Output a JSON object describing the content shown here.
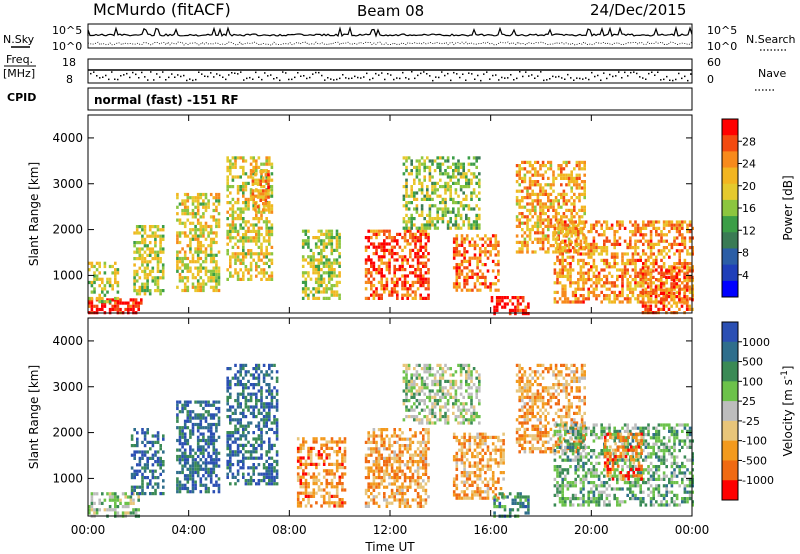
{
  "header": {
    "station": "McMurdo (fitACF)",
    "beam": "Beam 08",
    "date": "24/Dec/2015"
  },
  "status": {
    "nsky_label": "N.Sky",
    "nsearch_label": "N.Search",
    "noise_ticks_left": [
      "10^5",
      "10^0"
    ],
    "noise_ticks_right": [
      "10^5",
      "10^0"
    ],
    "freq_label": "Freq.",
    "freq_unit": "[MHz]",
    "freq_ticks": [
      "18",
      "8"
    ],
    "nave_ticks": [
      "60",
      "0"
    ],
    "nave_label": "Nave",
    "cpid_label": "CPID",
    "cpid_value": "normal (fast) -151 RF"
  },
  "chart_data": [
    {
      "type": "heatmap",
      "name": "power",
      "ylabel": "Slant Range [km]",
      "ylim": [
        180,
        4500
      ],
      "yticks": [
        1000,
        2000,
        3000,
        4000
      ],
      "xlim": [
        0,
        24
      ],
      "xtick_labels": [
        "00:00",
        "04:00",
        "08:00",
        "12:00",
        "16:00",
        "20:00",
        "00:00"
      ],
      "colorbar": {
        "label": "Power [dB]",
        "ticks": [
          "28",
          "24",
          "20",
          "16",
          "12",
          "8",
          "4"
        ],
        "colors": [
          "#ff0000",
          "#f34a10",
          "#f78a1c",
          "#f2b520",
          "#e5c92d",
          "#8cc63f",
          "#3b9e47",
          "#3a7b54",
          "#2b5ea6",
          "#1f3fb9",
          "#0000ff"
        ]
      },
      "regions": [
        {
          "t0": 0.0,
          "t1": 2.1,
          "r0": 180,
          "r1": 500,
          "level": 0.95
        },
        {
          "t0": 0.0,
          "t1": 1.2,
          "r0": 400,
          "r1": 1300,
          "level": 0.55
        },
        {
          "t0": 1.8,
          "t1": 3.0,
          "r0": 600,
          "r1": 2100,
          "level": 0.55
        },
        {
          "t0": 3.5,
          "t1": 5.2,
          "r0": 700,
          "r1": 2800,
          "level": 0.6
        },
        {
          "t0": 5.5,
          "t1": 7.3,
          "r0": 900,
          "r1": 3600,
          "level": 0.6
        },
        {
          "t0": 6.5,
          "t1": 7.2,
          "r0": 2400,
          "r1": 3300,
          "level": 0.75
        },
        {
          "t0": 8.5,
          "t1": 10.0,
          "r0": 500,
          "r1": 2000,
          "level": 0.55
        },
        {
          "t0": 11.0,
          "t1": 13.5,
          "r0": 500,
          "r1": 2000,
          "level": 0.85
        },
        {
          "t0": 12.5,
          "t1": 15.5,
          "r0": 2000,
          "r1": 3600,
          "level": 0.5
        },
        {
          "t0": 14.5,
          "t1": 16.3,
          "r0": 700,
          "r1": 1900,
          "level": 0.8
        },
        {
          "t0": 16.0,
          "t1": 17.5,
          "r0": 200,
          "r1": 550,
          "level": 0.95
        },
        {
          "t0": 17.0,
          "t1": 19.7,
          "r0": 1500,
          "r1": 3500,
          "level": 0.7
        },
        {
          "t0": 18.5,
          "t1": 24.0,
          "r0": 400,
          "r1": 2200,
          "level": 0.75
        },
        {
          "t0": 22.0,
          "t1": 24.0,
          "r0": 200,
          "r1": 1200,
          "level": 0.85
        }
      ]
    },
    {
      "type": "heatmap",
      "name": "velocity",
      "ylabel": "Slant Range [km]",
      "xlabel": "Time UT",
      "ylim": [
        180,
        4500
      ],
      "yticks": [
        1000,
        2000,
        3000,
        4000
      ],
      "xlim": [
        0,
        24
      ],
      "xtick_labels": [
        "00:00",
        "04:00",
        "08:00",
        "12:00",
        "16:00",
        "20:00",
        "00:00"
      ],
      "colorbar": {
        "label": "Velocity [m s^-1]",
        "ticks": [
          "1000",
          "500",
          "100",
          "25",
          "-25",
          "-100",
          "-500",
          "-1000"
        ],
        "colors": [
          "#2b4fb3",
          "#2f6e8c",
          "#3a8a55",
          "#6cc24a",
          "#bdbdbd",
          "#e8c57a",
          "#f39a1d",
          "#f06a12",
          "#ff0000"
        ]
      },
      "regions": [
        {
          "t0": 0.0,
          "t1": 2.0,
          "r0": 180,
          "r1": 700,
          "level": 0.45
        },
        {
          "t0": 1.7,
          "t1": 3.0,
          "r0": 700,
          "r1": 2100,
          "level": 0.15
        },
        {
          "t0": 3.5,
          "t1": 5.2,
          "r0": 700,
          "r1": 2700,
          "level": 0.15
        },
        {
          "t0": 5.5,
          "t1": 7.5,
          "r0": 900,
          "r1": 3500,
          "level": 0.15
        },
        {
          "t0": 8.3,
          "t1": 10.2,
          "r0": 400,
          "r1": 1900,
          "level": 0.75
        },
        {
          "t0": 11.0,
          "t1": 13.5,
          "r0": 400,
          "r1": 2100,
          "level": 0.7
        },
        {
          "t0": 12.5,
          "t1": 15.5,
          "r0": 2200,
          "r1": 3500,
          "level": 0.45
        },
        {
          "t0": 14.5,
          "t1": 16.5,
          "r0": 600,
          "r1": 2000,
          "level": 0.7
        },
        {
          "t0": 16.0,
          "t1": 17.5,
          "r0": 200,
          "r1": 700,
          "level": 0.25
        },
        {
          "t0": 17.0,
          "t1": 19.7,
          "r0": 1600,
          "r1": 3500,
          "level": 0.7
        },
        {
          "t0": 18.5,
          "t1": 24.0,
          "r0": 400,
          "r1": 2200,
          "level": 0.35
        },
        {
          "t0": 20.5,
          "t1": 22.0,
          "r0": 1000,
          "r1": 2000,
          "level": 0.8
        }
      ]
    }
  ]
}
